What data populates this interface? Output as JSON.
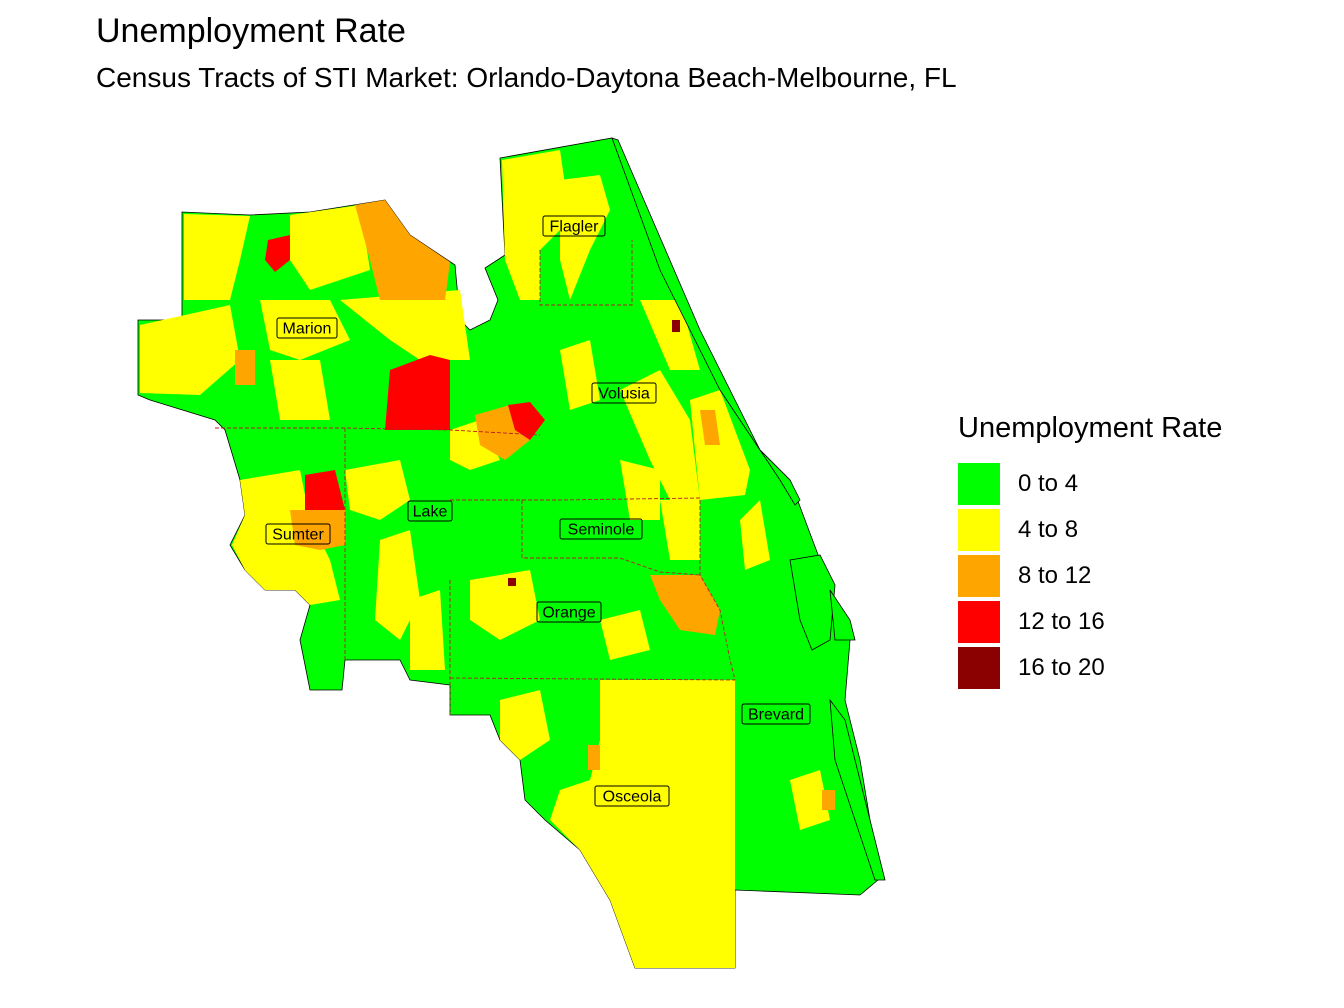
{
  "title": "Unemployment Rate",
  "subtitle": "Census Tracts of STI Market: Orlando-Daytona Beach-Melbourne, FL",
  "legend": {
    "title": "Unemployment Rate",
    "items": [
      {
        "label": "0 to 4",
        "color": "#00ff00"
      },
      {
        "label": "4 to 8",
        "color": "#ffff00"
      },
      {
        "label": "8 to 12",
        "color": "#ffa500"
      },
      {
        "label": "12 to 16",
        "color": "#ff0000"
      },
      {
        "label": "16 to 20",
        "color": "#8b0000"
      }
    ]
  },
  "counties": [
    {
      "name": "Flagler"
    },
    {
      "name": "Marion"
    },
    {
      "name": "Volusia"
    },
    {
      "name": "Lake"
    },
    {
      "name": "Sumter"
    },
    {
      "name": "Seminole"
    },
    {
      "name": "Orange"
    },
    {
      "name": "Brevard"
    },
    {
      "name": "Osceola"
    }
  ]
}
